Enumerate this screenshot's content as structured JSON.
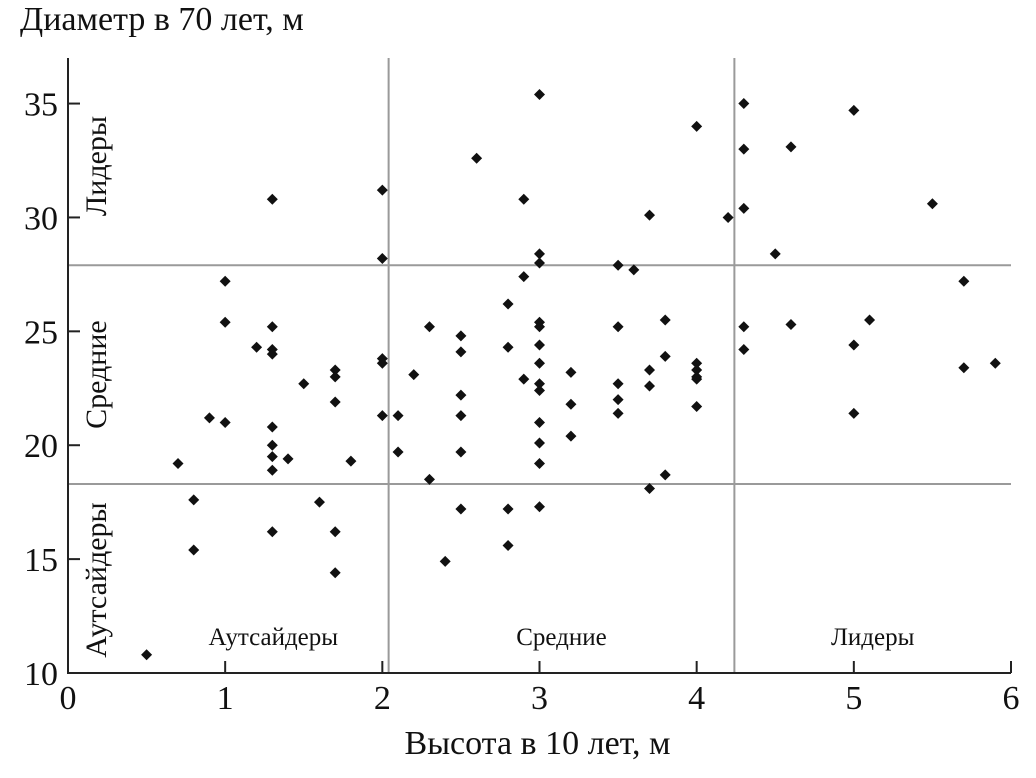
{
  "chart_data": {
    "type": "scatter",
    "ylabel": "Диаметр в 70 лет, м",
    "xlabel": "Высота в 10 лет, м",
    "xlim": [
      0,
      6
    ],
    "ylim": [
      10,
      37
    ],
    "x_ticks": [
      0,
      1,
      2,
      3,
      4,
      5,
      6
    ],
    "x_tick_labels": [
      "0",
      "1",
      "2",
      "3",
      "4",
      "5",
      "6"
    ],
    "y_ticks": [
      10,
      15,
      20,
      25,
      30,
      35
    ],
    "y_tick_labels": [
      "10",
      "15",
      "20",
      "25",
      "30",
      "35"
    ],
    "x_thresholds": [
      2.04,
      4.24
    ],
    "y_thresholds": [
      18.3,
      27.9
    ],
    "x_zone_labels": [
      "Аутсайдеры",
      "Средние",
      "Лидеры"
    ],
    "y_zone_labels": [
      "Аутсайдеры",
      "Средние",
      "Лидеры"
    ],
    "grid": false,
    "marker": "diamond",
    "colors": {
      "points": "#111111",
      "axes": "#222222",
      "thresholds": "#9a9a9a"
    },
    "points": [
      [
        0.5,
        10.8
      ],
      [
        0.7,
        19.2
      ],
      [
        0.8,
        17.6
      ],
      [
        0.8,
        15.4
      ],
      [
        0.9,
        21.2
      ],
      [
        1.0,
        27.2
      ],
      [
        1.0,
        25.4
      ],
      [
        1.0,
        21.0
      ],
      [
        1.2,
        24.3
      ],
      [
        1.3,
        30.8
      ],
      [
        1.3,
        25.2
      ],
      [
        1.3,
        24.2
      ],
      [
        1.3,
        24.0
      ],
      [
        1.3,
        20.8
      ],
      [
        1.3,
        20.0
      ],
      [
        1.3,
        19.5
      ],
      [
        1.3,
        18.9
      ],
      [
        1.3,
        16.2
      ],
      [
        1.4,
        19.4
      ],
      [
        1.5,
        22.7
      ],
      [
        1.6,
        17.5
      ],
      [
        1.7,
        23.3
      ],
      [
        1.7,
        23.0
      ],
      [
        1.7,
        21.9
      ],
      [
        1.7,
        16.2
      ],
      [
        1.7,
        14.4
      ],
      [
        1.8,
        19.3
      ],
      [
        2.0,
        31.2
      ],
      [
        2.0,
        28.2
      ],
      [
        2.0,
        23.8
      ],
      [
        2.0,
        23.6
      ],
      [
        2.0,
        21.3
      ],
      [
        2.1,
        21.3
      ],
      [
        2.1,
        19.7
      ],
      [
        2.2,
        23.1
      ],
      [
        2.3,
        25.2
      ],
      [
        2.3,
        18.5
      ],
      [
        2.4,
        14.9
      ],
      [
        2.5,
        24.8
      ],
      [
        2.5,
        24.1
      ],
      [
        2.5,
        22.2
      ],
      [
        2.5,
        21.3
      ],
      [
        2.5,
        19.7
      ],
      [
        2.5,
        17.2
      ],
      [
        2.6,
        32.6
      ],
      [
        2.8,
        26.2
      ],
      [
        2.8,
        24.3
      ],
      [
        2.8,
        17.2
      ],
      [
        2.8,
        15.6
      ],
      [
        2.9,
        30.8
      ],
      [
        2.9,
        27.4
      ],
      [
        2.9,
        22.9
      ],
      [
        3.0,
        35.4
      ],
      [
        3.0,
        28.4
      ],
      [
        3.0,
        28.0
      ],
      [
        3.0,
        25.4
      ],
      [
        3.0,
        25.2
      ],
      [
        3.0,
        24.4
      ],
      [
        3.0,
        23.6
      ],
      [
        3.0,
        22.7
      ],
      [
        3.0,
        22.4
      ],
      [
        3.0,
        21.0
      ],
      [
        3.0,
        20.1
      ],
      [
        3.0,
        19.2
      ],
      [
        3.0,
        17.3
      ],
      [
        3.2,
        23.2
      ],
      [
        3.2,
        21.8
      ],
      [
        3.2,
        20.4
      ],
      [
        3.5,
        27.9
      ],
      [
        3.5,
        25.2
      ],
      [
        3.5,
        22.7
      ],
      [
        3.5,
        22.0
      ],
      [
        3.5,
        21.4
      ],
      [
        3.6,
        27.7
      ],
      [
        3.7,
        30.1
      ],
      [
        3.7,
        23.3
      ],
      [
        3.7,
        22.6
      ],
      [
        3.7,
        18.1
      ],
      [
        3.8,
        25.5
      ],
      [
        3.8,
        23.9
      ],
      [
        3.8,
        18.7
      ],
      [
        4.0,
        34.0
      ],
      [
        4.0,
        23.6
      ],
      [
        4.0,
        23.3
      ],
      [
        4.0,
        23.0
      ],
      [
        4.0,
        22.9
      ],
      [
        4.0,
        21.7
      ],
      [
        4.2,
        30.0
      ],
      [
        4.3,
        35.0
      ],
      [
        4.3,
        33.0
      ],
      [
        4.3,
        30.4
      ],
      [
        4.3,
        25.2
      ],
      [
        4.3,
        24.2
      ],
      [
        4.5,
        28.4
      ],
      [
        4.6,
        33.1
      ],
      [
        4.6,
        25.3
      ],
      [
        5.0,
        34.7
      ],
      [
        5.0,
        24.4
      ],
      [
        5.0,
        21.4
      ],
      [
        5.1,
        25.5
      ],
      [
        5.5,
        30.6
      ],
      [
        5.7,
        27.2
      ],
      [
        5.7,
        23.4
      ],
      [
        5.9,
        23.6
      ]
    ]
  }
}
